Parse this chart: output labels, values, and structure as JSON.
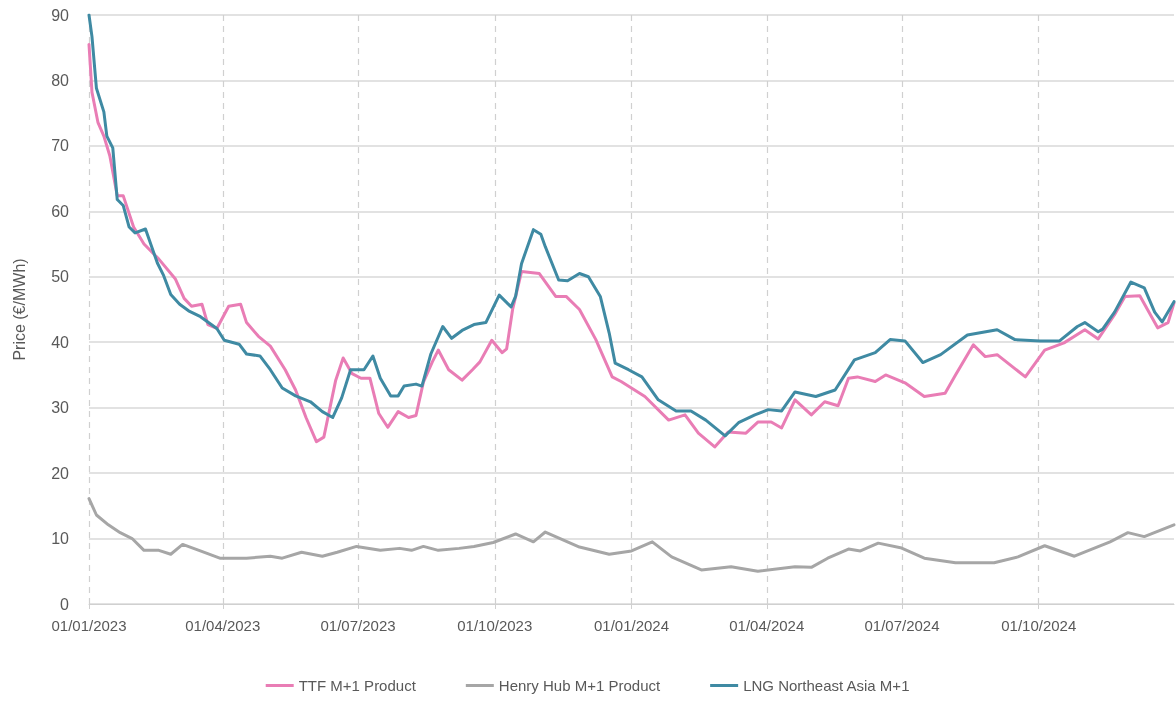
{
  "chart_data": {
    "type": "line",
    "ylabel": "Price (€/MWh)",
    "xlim": [
      "2023-01-01",
      "2024-12-31"
    ],
    "xticks": [
      {
        "value": "2023-01-01",
        "label": "01/01/2023"
      },
      {
        "value": "2023-04-01",
        "label": "01/04/2023"
      },
      {
        "value": "2023-07-01",
        "label": "01/07/2023"
      },
      {
        "value": "2023-10-01",
        "label": "01/10/2023"
      },
      {
        "value": "2024-01-01",
        "label": "01/01/2024"
      },
      {
        "value": "2024-04-01",
        "label": "01/04/2024"
      },
      {
        "value": "2024-07-01",
        "label": "01/07/2024"
      },
      {
        "value": "2024-10-01",
        "label": "01/10/2024"
      }
    ],
    "ylim": [
      0,
      90
    ],
    "yticks": [
      0,
      10,
      20,
      30,
      40,
      50,
      60,
      70,
      80,
      90
    ],
    "grid": true,
    "legend": "bottom",
    "marker": "none",
    "line_style": "solid",
    "series": [
      {
        "name": "TTF M+1 Product",
        "color": "#e97db5",
        "x": [
          "2023-01-01",
          "2023-01-03",
          "2023-01-07",
          "2023-01-11",
          "2023-01-15",
          "2023-01-20",
          "2023-01-24",
          "2023-01-31",
          "2023-02-07",
          "2023-02-17",
          "2023-02-28",
          "2023-03-06",
          "2023-03-11",
          "2023-03-18",
          "2023-03-22",
          "2023-03-28",
          "2023-04-05",
          "2023-04-13",
          "2023-04-17",
          "2023-04-25",
          "2023-05-03",
          "2023-05-13",
          "2023-05-20",
          "2023-05-27",
          "2023-06-03",
          "2023-06-08",
          "2023-06-16",
          "2023-06-21",
          "2023-06-27",
          "2023-07-03",
          "2023-07-09",
          "2023-07-15",
          "2023-07-21",
          "2023-07-28",
          "2023-08-04",
          "2023-08-09",
          "2023-08-14",
          "2023-08-20",
          "2023-08-24",
          "2023-08-31",
          "2023-09-09",
          "2023-09-16",
          "2023-09-21",
          "2023-09-29",
          "2023-10-06",
          "2023-10-09",
          "2023-10-13",
          "2023-10-19",
          "2023-10-31",
          "2023-11-11",
          "2023-11-18",
          "2023-11-27",
          "2023-12-08",
          "2023-12-19",
          "2023-12-25",
          "2024-01-10",
          "2024-01-26",
          "2024-02-06",
          "2024-02-15",
          "2024-02-26",
          "2024-03-06",
          "2024-03-18",
          "2024-03-26",
          "2024-04-04",
          "2024-04-11",
          "2024-04-20",
          "2024-05-01",
          "2024-05-10",
          "2024-05-19",
          "2024-05-26",
          "2024-06-01",
          "2024-06-13",
          "2024-06-20",
          "2024-07-03",
          "2024-07-16",
          "2024-07-30",
          "2024-08-06",
          "2024-08-18",
          "2024-08-26",
          "2024-09-03",
          "2024-09-22",
          "2024-10-05",
          "2024-10-18",
          "2024-11-01",
          "2024-11-10",
          "2024-11-21",
          "2024-11-28",
          "2024-12-08",
          "2024-12-20",
          "2024-12-27",
          "2024-12-31"
        ],
        "values": [
          85.5,
          78.2,
          73.6,
          71.5,
          68.5,
          62.4,
          62.4,
          57.6,
          55,
          52.7,
          49.7,
          46.7,
          45.5,
          45.8,
          42.7,
          42.1,
          45.5,
          45.8,
          43,
          40.9,
          39.4,
          35.8,
          32.7,
          28.5,
          24.8,
          25.5,
          34.2,
          37.6,
          35.2,
          34.5,
          34.5,
          29.1,
          27,
          29.4,
          28.5,
          28.8,
          33.9,
          37,
          38.8,
          35.8,
          34.2,
          35.8,
          37,
          40.3,
          38.4,
          39,
          45,
          50.8,
          50.5,
          47,
          47,
          45,
          40.4,
          34.7,
          34,
          31.7,
          28.1,
          28.9,
          26.1,
          24,
          26.3,
          26.1,
          27.8,
          27.8,
          26.9,
          31.2,
          28.9,
          30.9,
          30.3,
          34.5,
          34.7,
          34,
          35,
          33.8,
          31.7,
          32.2,
          35,
          39.6,
          37.8,
          38.1,
          34.7,
          38.8,
          39.9,
          41.9,
          40.5,
          44.2,
          47,
          47.1,
          42.2,
          43,
          46
        ]
      },
      {
        "name": "Henry Hub M+1 Product",
        "color": "#a6a6a6",
        "x": [
          "2023-01-01",
          "2023-01-06",
          "2023-01-14",
          "2023-01-22",
          "2023-01-30",
          "2023-02-07",
          "2023-02-17",
          "2023-02-25",
          "2023-03-05",
          "2023-03-16",
          "2023-03-30",
          "2023-04-17",
          "2023-05-03",
          "2023-05-11",
          "2023-05-24",
          "2023-06-07",
          "2023-06-17",
          "2023-06-30",
          "2023-07-16",
          "2023-07-29",
          "2023-08-06",
          "2023-08-14",
          "2023-08-24",
          "2023-09-07",
          "2023-09-17",
          "2023-09-30",
          "2023-10-15",
          "2023-10-27",
          "2023-11-04",
          "2023-11-27",
          "2023-12-17",
          "2024-01-01",
          "2024-01-15",
          "2024-01-28",
          "2024-02-17",
          "2024-03-08",
          "2024-03-26",
          "2024-04-20",
          "2024-05-01",
          "2024-05-12",
          "2024-05-26",
          "2024-06-03",
          "2024-06-15",
          "2024-06-30",
          "2024-07-16",
          "2024-08-06",
          "2024-09-01",
          "2024-09-17",
          "2024-10-05",
          "2024-10-25",
          "2024-11-18",
          "2024-11-30",
          "2024-12-11",
          "2024-12-31"
        ],
        "values": [
          16.1,
          13.6,
          12.1,
          10.9,
          10,
          8.2,
          8.2,
          7.6,
          9.1,
          8.2,
          7,
          7,
          7.3,
          7,
          7.9,
          7.3,
          7.9,
          8.8,
          8.2,
          8.5,
          8.2,
          8.8,
          8.2,
          8.5,
          8.8,
          9.4,
          10.7,
          9.5,
          11,
          8.7,
          7.6,
          8.1,
          9.5,
          7.2,
          5.2,
          5.7,
          5,
          5.7,
          5.6,
          7,
          8.4,
          8.1,
          9.3,
          8.6,
          7,
          6.3,
          6.3,
          7.2,
          8.9,
          7.3,
          9.5,
          10.9,
          10.3,
          12.1
        ]
      },
      {
        "name": "LNG Northeast Asia M+1",
        "color": "#3f8aa3",
        "x": [
          "2023-01-01",
          "2023-01-03",
          "2023-01-06",
          "2023-01-11",
          "2023-01-13",
          "2023-01-17",
          "2023-01-20",
          "2023-01-24",
          "2023-01-28",
          "2023-02-01",
          "2023-02-08",
          "2023-02-16",
          "2023-02-20",
          "2023-02-25",
          "2023-03-03",
          "2023-03-09",
          "2023-03-17",
          "2023-03-28",
          "2023-04-02",
          "2023-04-12",
          "2023-04-17",
          "2023-04-26",
          "2023-05-03",
          "2023-05-11",
          "2023-05-20",
          "2023-05-30",
          "2023-06-07",
          "2023-06-14",
          "2023-06-20",
          "2023-06-26",
          "2023-07-05",
          "2023-07-11",
          "2023-07-16",
          "2023-07-23",
          "2023-07-28",
          "2023-08-01",
          "2023-08-09",
          "2023-08-13",
          "2023-08-19",
          "2023-08-27",
          "2023-09-02",
          "2023-09-09",
          "2023-09-17",
          "2023-09-25",
          "2023-10-04",
          "2023-10-12",
          "2023-10-15",
          "2023-10-19",
          "2023-10-27",
          "2023-11-01",
          "2023-11-04",
          "2023-11-13",
          "2023-11-19",
          "2023-11-27",
          "2023-12-03",
          "2023-12-11",
          "2023-12-17",
          "2023-12-21",
          "2023-12-30",
          "2024-01-08",
          "2024-01-19",
          "2024-01-31",
          "2024-02-10",
          "2024-02-20",
          "2024-03-04",
          "2024-03-13",
          "2024-03-24",
          "2024-04-02",
          "2024-04-11",
          "2024-04-20",
          "2024-05-04",
          "2024-05-17",
          "2024-05-30",
          "2024-06-13",
          "2024-06-23",
          "2024-07-03",
          "2024-07-15",
          "2024-07-27",
          "2024-08-14",
          "2024-09-03",
          "2024-09-15",
          "2024-10-02",
          "2024-10-15",
          "2024-10-27",
          "2024-11-01",
          "2024-11-10",
          "2024-11-13",
          "2024-11-21",
          "2024-12-02",
          "2024-12-11",
          "2024-12-18",
          "2024-12-23",
          "2024-12-31"
        ],
        "values": [
          90,
          86.7,
          78.8,
          75.2,
          71.5,
          69.7,
          61.8,
          60.9,
          57.6,
          56.7,
          57.3,
          52.1,
          50.3,
          47.3,
          45.8,
          44.8,
          43.9,
          42.1,
          40.3,
          39.7,
          38.2,
          37.9,
          35.8,
          33,
          31.8,
          30.9,
          29.4,
          28.5,
          31.5,
          35.8,
          35.8,
          37.9,
          34.5,
          31.8,
          31.8,
          33.3,
          33.6,
          33.3,
          38.2,
          42.4,
          40.6,
          41.8,
          42.7,
          43,
          47.2,
          45.4,
          47,
          52,
          57.2,
          56.5,
          54.6,
          49.5,
          49.4,
          50.5,
          50,
          47,
          41.4,
          36.8,
          35.8,
          34.7,
          31.2,
          29.5,
          29.5,
          28.1,
          25.7,
          27.7,
          28.9,
          29.7,
          29.5,
          32.4,
          31.7,
          32.7,
          37.3,
          38.4,
          40.4,
          40.2,
          36.9,
          38.1,
          41.1,
          41.9,
          40.4,
          40.2,
          40.2,
          42.4,
          43,
          41.6,
          42,
          44.6,
          49.2,
          48.3,
          44.6,
          43.1,
          46.2
        ]
      }
    ]
  }
}
